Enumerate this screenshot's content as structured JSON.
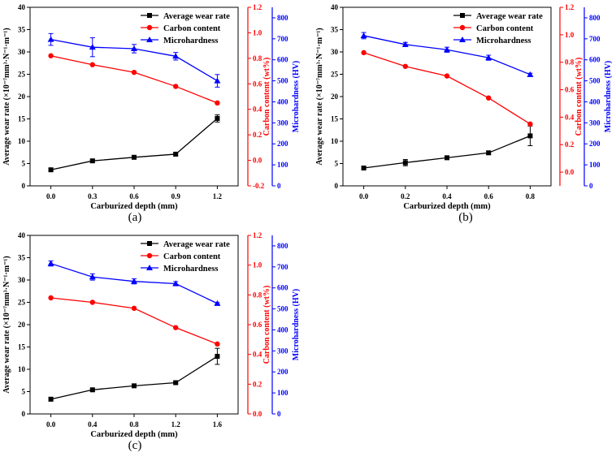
{
  "colors": {
    "wear": "#000000",
    "carbon": "#ff0000",
    "hardness": "#0000ff",
    "axis": "#000000"
  },
  "chart_data": [
    {
      "type": "line",
      "panel_label": "(a)",
      "xlabel": "Carburized depth (mm)",
      "ylabel": "Average wear rate (×10⁻⁷mm³·N⁻¹·m⁻¹)",
      "y2label": "Carbon content (wt%)",
      "y3label": "Microhardness (HV)",
      "x": [
        0.0,
        0.3,
        0.6,
        0.9,
        1.2
      ],
      "xticks": [
        "0.0",
        "0.3",
        "0.6",
        "0.9",
        "1.2"
      ],
      "xlim": [
        -0.15,
        1.35
      ],
      "ylim": [
        0,
        40
      ],
      "yticks": [
        "0",
        "5",
        "10",
        "15",
        "20",
        "25",
        "30",
        "35",
        "40"
      ],
      "y2lim": [
        -0.2,
        1.2
      ],
      "y2ticks": [
        "-0.2",
        "0.0",
        "0.2",
        "0.4",
        "0.6",
        "0.8",
        "1.0",
        "1.2"
      ],
      "y3lim": [
        0,
        850
      ],
      "y3ticks": [
        "0",
        "100",
        "200",
        "300",
        "400",
        "500",
        "600",
        "700",
        "800"
      ],
      "legend": [
        "Average wear rate",
        "Carbon content",
        "Microhardness"
      ],
      "series": [
        {
          "name": "Average wear rate",
          "axis": "y1",
          "marker": "square",
          "values": [
            3.6,
            5.6,
            6.4,
            7.1,
            15.1
          ],
          "errors": [
            0.3,
            0.4,
            0.3,
            0.3,
            0.8
          ]
        },
        {
          "name": "Carbon content",
          "axis": "y2",
          "marker": "circle",
          "values": [
            0.82,
            0.75,
            0.69,
            0.58,
            0.45
          ],
          "errors": []
        },
        {
          "name": "Microhardness",
          "axis": "y3",
          "marker": "triangle",
          "values": [
            697,
            660,
            653,
            617,
            500
          ],
          "errors": [
            28,
            45,
            20,
            18,
            30
          ]
        }
      ]
    },
    {
      "type": "line",
      "panel_label": "(b)",
      "xlabel": "Carburized depth (mm)",
      "ylabel": "Average wear rate (×10⁻⁷mm³·N⁻¹·m⁻¹)",
      "y2label": "Carbon content (wt%)",
      "y3label": "Microhardness (HV)",
      "x": [
        0.0,
        0.2,
        0.4,
        0.6,
        0.8
      ],
      "xticks": [
        "0.0",
        "0.2",
        "0.4",
        "0.6",
        "0.8"
      ],
      "xlim": [
        -0.1,
        0.9
      ],
      "ylim": [
        0,
        40
      ],
      "yticks": [
        "0",
        "5",
        "10",
        "15",
        "20",
        "25",
        "30",
        "35",
        "40"
      ],
      "y2lim": [
        -0.1,
        1.2
      ],
      "y2ticks": [
        "0.0",
        "0.2",
        "0.4",
        "0.6",
        "0.8",
        "1.0",
        "1.2"
      ],
      "y3lim": [
        0,
        850
      ],
      "y3ticks": [
        "0",
        "100",
        "200",
        "300",
        "400",
        "500",
        "600",
        "700",
        "800"
      ],
      "legend": [
        "Average wear rate",
        "Carbon content",
        "Microhardness"
      ],
      "series": [
        {
          "name": "Average wear rate",
          "axis": "y1",
          "marker": "square",
          "values": [
            4.0,
            5.2,
            6.3,
            7.4,
            11.2
          ],
          "errors": [
            0.3,
            0.7,
            0.4,
            0.4,
            2.2
          ]
        },
        {
          "name": "Carbon content",
          "axis": "y2",
          "marker": "circle",
          "values": [
            0.87,
            0.77,
            0.7,
            0.54,
            0.35
          ],
          "errors": []
        },
        {
          "name": "Microhardness",
          "axis": "y3",
          "marker": "triangle",
          "values": [
            715,
            673,
            648,
            610,
            530
          ],
          "errors": [
            15,
            10,
            12,
            12,
            6
          ]
        }
      ]
    },
    {
      "type": "line",
      "panel_label": "(c)",
      "xlabel": "Carburized depth (mm)",
      "ylabel": "Average wear rate (×10⁻⁷mm³·N⁻¹·m⁻¹)",
      "y2label": "Carbon content (wt%)",
      "y3label": "Microhardness (HV)",
      "x": [
        0.0,
        0.4,
        0.8,
        1.2,
        1.6
      ],
      "xticks": [
        "0.0",
        "0.4",
        "0.8",
        "1.2",
        "1.6"
      ],
      "xlim": [
        -0.2,
        1.8
      ],
      "ylim": [
        0,
        40
      ],
      "yticks": [
        "0",
        "5",
        "10",
        "15",
        "20",
        "25",
        "30",
        "35",
        "40"
      ],
      "y2lim": [
        0.0,
        1.2
      ],
      "y2ticks": [
        "0.0",
        "0.2",
        "0.4",
        "0.6",
        "0.8",
        "1.0",
        "1.2"
      ],
      "y3lim": [
        0,
        850
      ],
      "y3ticks": [
        "0",
        "100",
        "200",
        "300",
        "400",
        "500",
        "600",
        "700",
        "800"
      ],
      "legend": [
        "Average wear rate",
        "Carbon content",
        "Microhardness"
      ],
      "series": [
        {
          "name": "Average wear rate",
          "axis": "y1",
          "marker": "square",
          "values": [
            3.3,
            5.4,
            6.3,
            7.0,
            12.9
          ],
          "errors": [
            0.4,
            0.4,
            0.3,
            0.3,
            1.8
          ]
        },
        {
          "name": "Carbon content",
          "axis": "y2",
          "marker": "circle",
          "values": [
            0.78,
            0.75,
            0.71,
            0.58,
            0.47
          ],
          "errors": []
        },
        {
          "name": "Microhardness",
          "axis": "y3",
          "marker": "triangle",
          "values": [
            716,
            652,
            631,
            620,
            526
          ],
          "errors": [
            12,
            15,
            12,
            10,
            4
          ]
        }
      ]
    }
  ]
}
